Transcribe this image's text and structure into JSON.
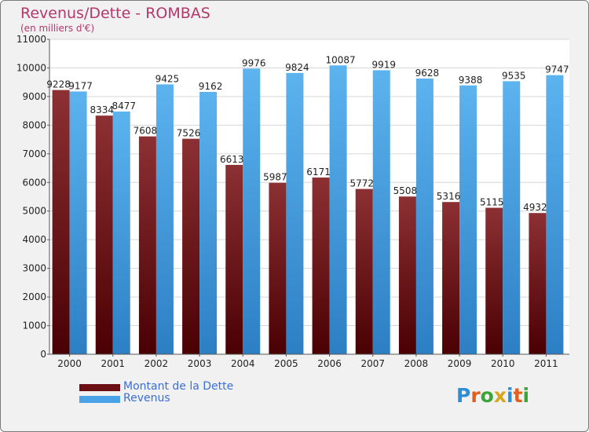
{
  "chart_data": {
    "type": "bar",
    "title": "Revenus/Dette - ROMBAS",
    "subtitle": "(en milliers d'€)",
    "categories": [
      "2000",
      "2001",
      "2002",
      "2003",
      "2004",
      "2005",
      "2006",
      "2007",
      "2008",
      "2009",
      "2010",
      "2011"
    ],
    "series": [
      {
        "name": "Montant de la Dette",
        "color": "#7a1416",
        "values": [
          9228,
          8334,
          7608,
          7526,
          6613,
          5987,
          6171,
          5772,
          5508,
          5316,
          5115,
          4932
        ]
      },
      {
        "name": "Revenus",
        "color": "#4aa3e6",
        "values": [
          9177,
          8477,
          9425,
          9162,
          9976,
          9824,
          10087,
          9919,
          9628,
          9388,
          9535,
          9747
        ]
      }
    ],
    "yticks": [
      0,
      1000,
      2000,
      3000,
      4000,
      5000,
      6000,
      7000,
      8000,
      9000,
      10000,
      11000
    ],
    "ylim": [
      0,
      11000
    ],
    "grid": true,
    "legend": "bottom-left"
  },
  "logo": {
    "text": "Proxiti",
    "letter_colors": [
      "#2b8fd6",
      "#e25e1c",
      "#3aa536",
      "#d6a61c",
      "#2b8fd6",
      "#e25e1c",
      "#3aa536"
    ]
  }
}
